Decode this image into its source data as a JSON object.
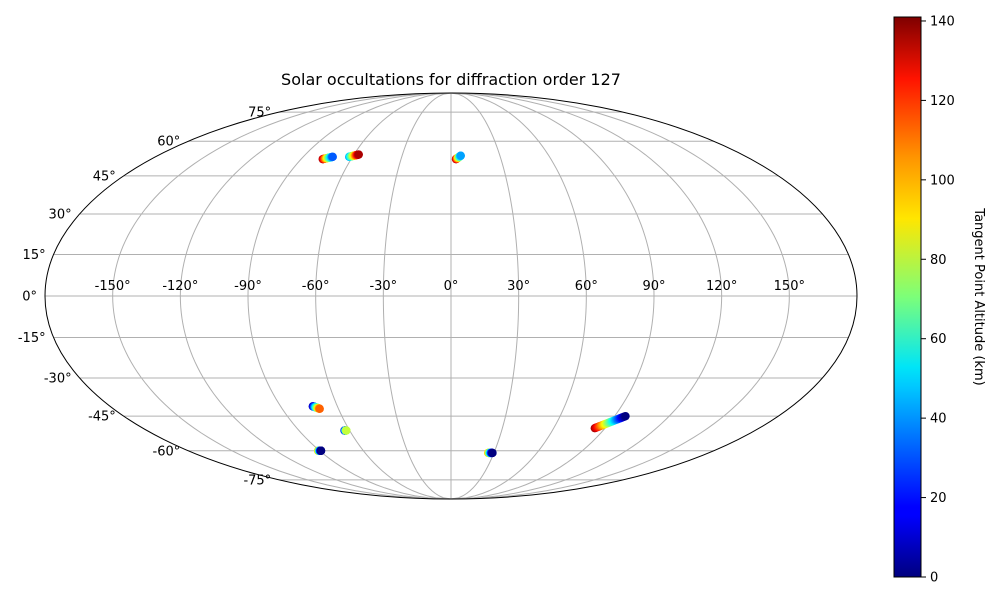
{
  "chart_data": {
    "type": "scatter",
    "projection": "mollweide",
    "title": "Solar occultations for diffraction order 127",
    "grid": true,
    "lon_ticks": [
      -150,
      -120,
      -90,
      -60,
      -30,
      0,
      30,
      60,
      90,
      120,
      150
    ],
    "lon_tick_labels": [
      "-150°",
      "-120°",
      "-90°",
      "-60°",
      "-30°",
      "0°",
      "30°",
      "60°",
      "90°",
      "120°",
      "150°"
    ],
    "lat_ticks": [
      75,
      60,
      45,
      30,
      15,
      0,
      -15,
      -30,
      -45,
      -60,
      -75
    ],
    "lat_tick_labels": [
      "75°",
      "60°",
      "45°",
      "30°",
      "15°",
      "0°",
      "-15°",
      "-30°",
      "-45°",
      "-60°",
      "-75°"
    ],
    "colorbar": {
      "label": "Tangent Point Altitude (km)",
      "colormap": "jet",
      "range": [
        0,
        141
      ],
      "ticks": [
        0,
        20,
        40,
        60,
        80,
        100,
        120,
        140
      ],
      "tick_labels": [
        "0",
        "20",
        "40",
        "60",
        "80",
        "100",
        "120",
        "140"
      ]
    },
    "occultations": [
      {
        "lon_start": -77,
        "lat_start": 52,
        "lon_end": -72,
        "lat_end": 53,
        "alt_start": 135,
        "alt_end": 30
      },
      {
        "lon_start": -62,
        "lat_start": 53,
        "lon_end": -57,
        "lat_end": 54,
        "alt_start": 40,
        "alt_end": 135
      },
      {
        "lon_start": 3,
        "lat_start": 52,
        "lon_end": 6,
        "lat_end": 53.5,
        "alt_start": 135,
        "alt_end": 40
      },
      {
        "lon_start": -73,
        "lat_start": -41,
        "lon_end": -70,
        "lat_end": -42,
        "alt_start": 5,
        "alt_end": 110
      },
      {
        "lon_start": -63,
        "lat_start": -51,
        "lon_end": -62,
        "lat_end": -51,
        "alt_start": 0,
        "alt_end": 80
      },
      {
        "lon_start": -91,
        "lat_start": -60,
        "lon_end": -89,
        "lat_end": -60,
        "alt_start": 100,
        "alt_end": 0
      },
      {
        "lon_start": 26,
        "lat_start": -61,
        "lon_end": 29,
        "lat_end": -61,
        "alt_start": 100,
        "alt_end": 0
      },
      {
        "lon_start": 84,
        "lat_start": -50,
        "lon_end": 96,
        "lat_end": -45,
        "alt_start": 135,
        "alt_end": 0
      }
    ]
  }
}
